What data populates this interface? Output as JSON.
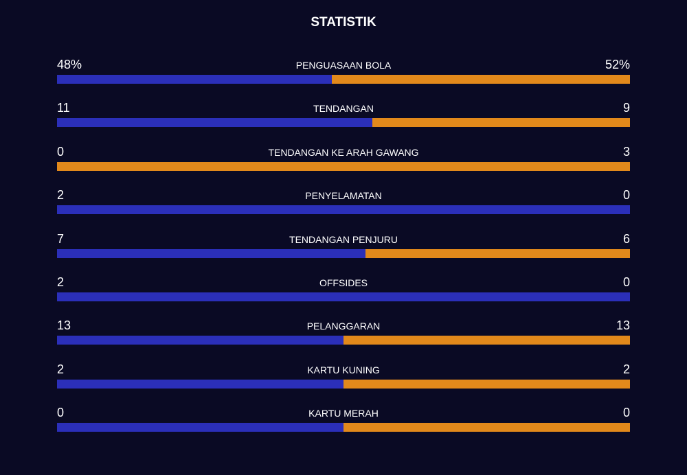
{
  "title": "STATISTIK",
  "home_color": "#2b2fb9",
  "away_color": "#e2891b",
  "rows": [
    {
      "label": "PENGUASAAN BOLA",
      "home": {
        "value": 48,
        "label": "48%"
      },
      "away": {
        "value": 52,
        "label": "52%"
      }
    },
    {
      "label": "TENDANGAN",
      "home": 11,
      "away": 9
    },
    {
      "label": "TENDANGAN KE ARAH GAWANG",
      "home": 0,
      "away": 3
    },
    {
      "label": "PENYELAMATAN",
      "home": 2,
      "away": 0
    },
    {
      "label": "TENDANGAN PENJURU",
      "home": 7,
      "away": 6
    },
    {
      "label": "OFFSIDES",
      "home": 2,
      "away": 0
    },
    {
      "label": "PELANGGARAN",
      "home": 13,
      "away": 13
    },
    {
      "label": "KARTU KUNING",
      "home": 2,
      "away": 2
    },
    {
      "label": "KARTU MERAH",
      "home": 0,
      "away": 0
    }
  ]
}
